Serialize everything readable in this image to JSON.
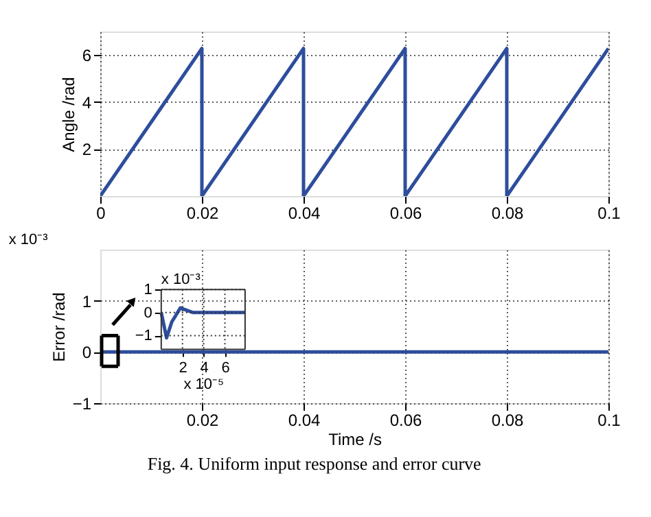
{
  "chart_data": [
    {
      "type": "line",
      "ylabel": "Angle /rad",
      "xlim": [
        0,
        0.1
      ],
      "xticks": [
        0,
        0.02,
        0.04,
        0.06,
        0.08,
        0.1
      ],
      "ylim": [
        0,
        7
      ],
      "yticks": [
        2,
        4,
        6
      ],
      "grid": true,
      "marker": "none",
      "line_style": "solid",
      "series": [
        {
          "color": "#2e4d9c",
          "x": [
            0,
            0.02,
            0.02,
            0.04,
            0.04,
            0.06,
            0.06,
            0.08,
            0.08,
            0.1
          ],
          "values": [
            0,
            6.28,
            0,
            6.28,
            0,
            6.28,
            0,
            6.28,
            0,
            6.28
          ]
        }
      ]
    },
    {
      "type": "line",
      "xlabel": "Time /s",
      "ylabel": "Error /rad",
      "xlim": [
        0,
        0.1
      ],
      "xticks": [
        0.02,
        0.04,
        0.06,
        0.08,
        0.1
      ],
      "ylim": [
        -1,
        2
      ],
      "yticks": [
        -1,
        0,
        1
      ],
      "grid": true,
      "marker": "none",
      "line_style": "solid",
      "annotations": [
        "x 10⁻³",
        "Fig. 4. Uniform input response and error curve"
      ],
      "series": [
        {
          "color": "#2e4d9c",
          "x": [
            0,
            0.05,
            0.1
          ],
          "values": [
            0,
            0,
            0
          ]
        }
      ]
    },
    {
      "type": "line",
      "xlabel": "x 10⁻⁵",
      "xlim": [
        0,
        7.9
      ],
      "xticks": [
        2,
        4,
        6
      ],
      "ylim": [
        -1.6,
        1
      ],
      "yticks": [
        -1,
        0,
        1
      ],
      "grid": true,
      "marker": "none",
      "line_style": "solid",
      "annotations": [
        "x 10⁻³"
      ],
      "series": [
        {
          "color": "#2e4d9c",
          "x": [
            0,
            0.5,
            1.0,
            1.8,
            3.0,
            5.0,
            7.9
          ],
          "values": [
            0,
            -1.1,
            -0.4,
            0.2,
            0,
            0,
            0
          ]
        }
      ]
    }
  ]
}
